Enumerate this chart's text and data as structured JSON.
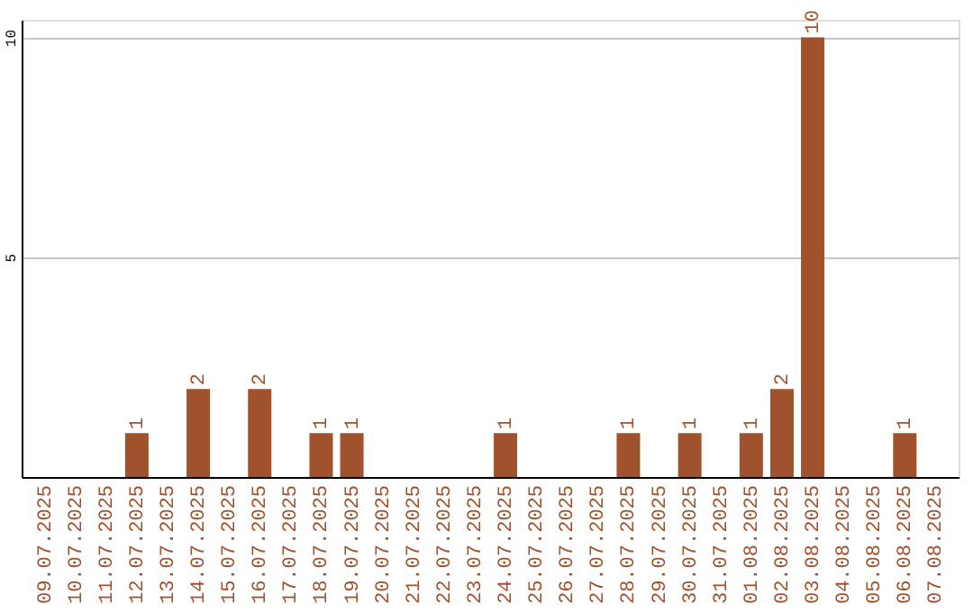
{
  "chart_data": {
    "type": "bar",
    "categories": [
      "09.07.2025",
      "10.07.2025",
      "11.07.2025",
      "12.07.2025",
      "13.07.2025",
      "14.07.2025",
      "15.07.2025",
      "16.07.2025",
      "17.07.2025",
      "18.07.2025",
      "19.07.2025",
      "20.07.2025",
      "21.07.2025",
      "22.07.2025",
      "23.07.2025",
      "24.07.2025",
      "25.07.2025",
      "26.07.2025",
      "27.07.2025",
      "28.07.2025",
      "29.07.2025",
      "30.07.2025",
      "31.07.2025",
      "01.08.2025",
      "02.08.2025",
      "03.08.2025",
      "04.08.2025",
      "05.08.2025",
      "06.08.2025",
      "07.08.2025"
    ],
    "values": [
      0,
      0,
      0,
      1,
      0,
      2,
      0,
      2,
      0,
      1,
      1,
      0,
      0,
      0,
      0,
      1,
      0,
      0,
      0,
      1,
      0,
      1,
      0,
      1,
      2,
      10,
      0,
      0,
      1,
      0
    ],
    "value_labels": [
      null,
      null,
      null,
      "1",
      null,
      "2",
      null,
      "2",
      null,
      "1",
      "1",
      null,
      null,
      null,
      null,
      "1",
      null,
      null,
      null,
      "1",
      null,
      "1",
      null,
      "1",
      "2",
      "10",
      null,
      null,
      "1",
      null
    ],
    "color": "#a0522d",
    "ylim": [
      0,
      10.4
    ],
    "yticks": [
      5,
      10
    ],
    "grid": "y"
  }
}
